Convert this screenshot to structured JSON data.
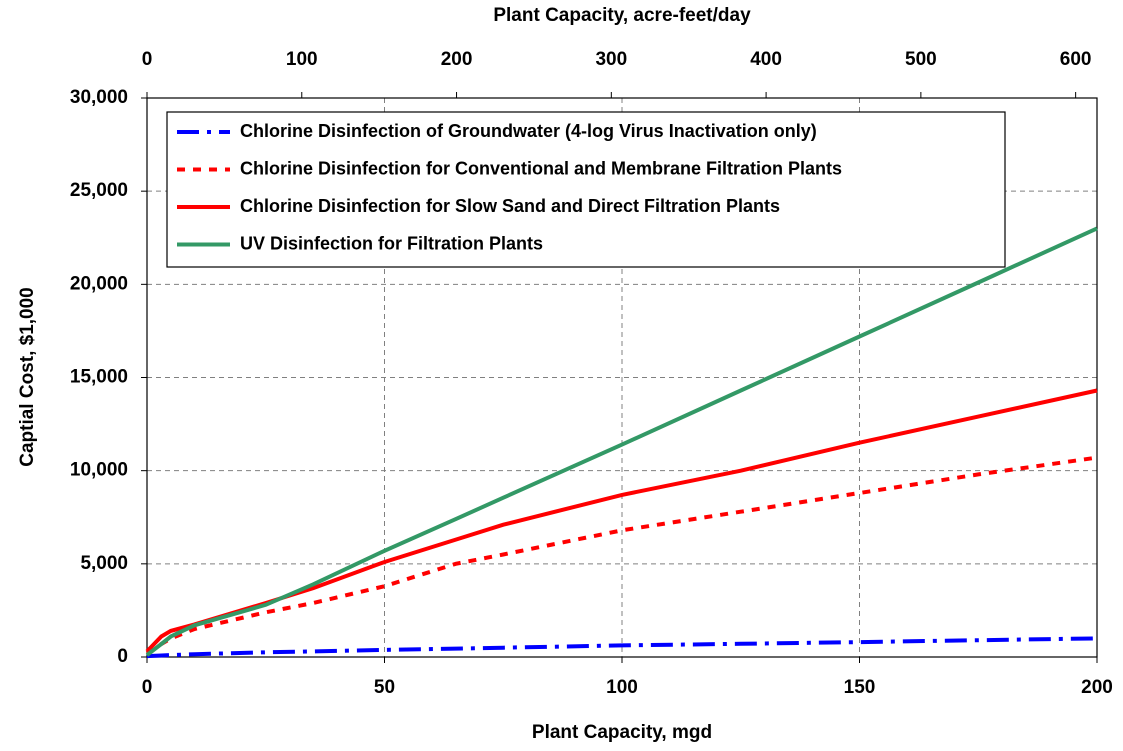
{
  "chart_data": {
    "type": "line",
    "xlabel": "Plant Capacity, mgd",
    "x2label": "Plant Capacity, acre-feet/day",
    "ylabel": "Captial Cost, $1,000",
    "x": [
      0,
      3,
      5,
      10,
      25,
      35,
      50,
      65,
      75,
      100,
      125,
      150,
      175,
      200
    ],
    "xlim": [
      0,
      200
    ],
    "xticks": [
      0,
      50,
      100,
      150,
      200
    ],
    "x2lim": [
      0,
      613.8
    ],
    "x2ticks": [
      0,
      100,
      200,
      300,
      400,
      500,
      600
    ],
    "ylim": [
      0,
      30000
    ],
    "yticks": [
      0,
      {
        "value": 5000,
        "label": "5,000"
      },
      {
        "value": 10000,
        "label": "10,000"
      },
      {
        "value": 15000,
        "label": "15,000"
      },
      {
        "value": 20000,
        "label": "20,000"
      },
      {
        "value": 25000,
        "label": "25,000"
      },
      {
        "value": 30000,
        "label": "30,000"
      }
    ],
    "grid": true,
    "legend": "top-left",
    "series": [
      {
        "name": "Chlorine Disinfection of Groundwater (4-log Virus Inactivation only)",
        "color": "#0000ff",
        "style": "dash-dot",
        "values": [
          50,
          80,
          100,
          150,
          250,
          300,
          380,
          450,
          500,
          620,
          710,
          800,
          900,
          1000
        ]
      },
      {
        "name": "Chlorine Disinfection for Conventional and Membrane Filtration Plants",
        "color": "#ff0000",
        "style": "dotted",
        "values": [
          200,
          700,
          1000,
          1500,
          2400,
          2900,
          3800,
          5000,
          5500,
          6800,
          7800,
          8800,
          9800,
          10700
        ]
      },
      {
        "name": "Chlorine Disinfection for Slow Sand and Direct Filtration Plants",
        "color": "#ff0000",
        "style": "solid",
        "values": [
          300,
          1100,
          1400,
          1750,
          2900,
          3700,
          5100,
          6300,
          7100,
          8700,
          10000,
          11500,
          12900,
          14300
        ]
      },
      {
        "name": "UV Disinfection for Filtration Plants",
        "color": "#339966",
        "style": "solid",
        "values": [
          100,
          700,
          1100,
          1700,
          2800,
          3900,
          5700,
          7400,
          8550,
          11400,
          14300,
          17200,
          20100,
          23000
        ]
      }
    ]
  }
}
